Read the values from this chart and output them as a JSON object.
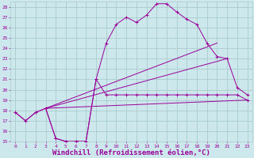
{
  "bg_color": "#cde8ec",
  "grid_color": "#aacccc",
  "line_color": "#990099",
  "marker_color": "#990099",
  "ylim": [
    15,
    28.5
  ],
  "xlim": [
    -0.5,
    23.5
  ],
  "yticks": [
    15,
    16,
    17,
    18,
    19,
    20,
    21,
    22,
    23,
    24,
    25,
    26,
    27,
    28
  ],
  "xticks": [
    0,
    1,
    2,
    3,
    4,
    5,
    6,
    7,
    8,
    9,
    10,
    11,
    12,
    13,
    14,
    15,
    16,
    17,
    18,
    19,
    20,
    21,
    22,
    23
  ],
  "xlabel": "Windchill (Refroidissement éolien,°C)",
  "xlabel_fontsize": 6.5,
  "curve1_x": [
    0,
    1,
    2,
    3,
    4,
    5,
    6,
    7,
    8,
    9,
    10,
    11,
    12,
    13,
    14,
    15,
    16,
    17,
    18,
    19,
    20,
    21,
    22,
    23
  ],
  "curve1_y": [
    17.8,
    17.0,
    17.8,
    18.2,
    15.3,
    15.0,
    15.0,
    15.0,
    21.0,
    19.5,
    19.5,
    19.5,
    19.5,
    19.5,
    19.5,
    19.5,
    19.5,
    19.5,
    19.5,
    19.5,
    19.5,
    19.5,
    19.5,
    19.0
  ],
  "curve2_x": [
    0,
    1,
    2,
    3,
    4,
    5,
    6,
    7,
    8,
    9,
    10,
    11,
    12,
    13,
    14,
    15,
    16,
    17,
    18,
    19,
    20,
    21,
    22,
    23
  ],
  "curve2_y": [
    17.8,
    17.0,
    17.8,
    18.2,
    15.3,
    15.0,
    15.0,
    15.0,
    21.0,
    24.5,
    26.3,
    27.0,
    26.5,
    27.2,
    28.3,
    28.3,
    27.5,
    26.8,
    26.3,
    24.5,
    23.2,
    23.0,
    20.2,
    19.5
  ],
  "line1": {
    "x": [
      3,
      23
    ],
    "y": [
      18.2,
      19.0
    ]
  },
  "line2": {
    "x": [
      3,
      20
    ],
    "y": [
      18.2,
      24.5
    ]
  },
  "line3": {
    "x": [
      3,
      21
    ],
    "y": [
      18.2,
      23.0
    ]
  }
}
